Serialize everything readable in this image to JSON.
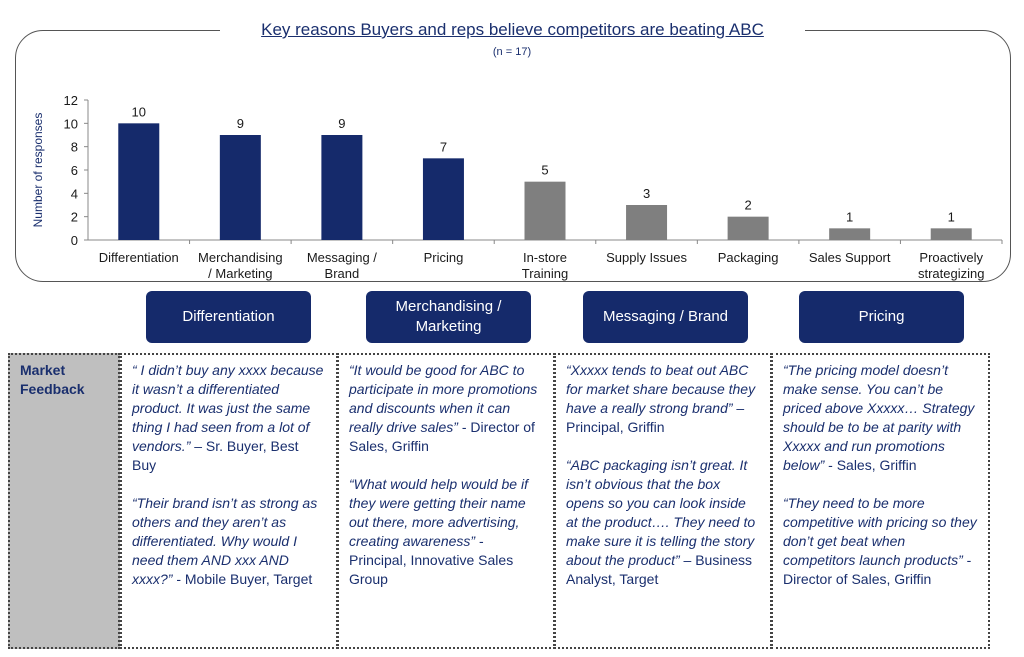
{
  "title": "Key reasons Buyers and reps believe competitors are beating ABC",
  "subtitle": "(n = 17)",
  "chart_data": {
    "type": "bar",
    "categories": [
      "Differentiation",
      "Merchandising / Marketing",
      "Messaging / Brand",
      "Pricing",
      "In-store Training",
      "Supply Issues",
      "Packaging",
      "Sales Support",
      "Proactively strategizing"
    ],
    "category_lines": [
      [
        "Differentiation"
      ],
      [
        "Merchandising",
        "/ Marketing"
      ],
      [
        "Messaging /",
        "Brand"
      ],
      [
        "Pricing"
      ],
      [
        "In-store",
        "Training"
      ],
      [
        "Supply Issues"
      ],
      [
        "Packaging"
      ],
      [
        "Sales Support"
      ],
      [
        "Proactively",
        "strategizing"
      ]
    ],
    "values": [
      10,
      9,
      9,
      7,
      5,
      3,
      2,
      1,
      1
    ],
    "bar_colors": [
      "#152a6b",
      "#152a6b",
      "#152a6b",
      "#152a6b",
      "#7f7f7f",
      "#7f7f7f",
      "#7f7f7f",
      "#7f7f7f",
      "#7f7f7f"
    ],
    "ylabel": "Number of responses",
    "ylim": [
      0,
      12
    ],
    "yticks": [
      0,
      2,
      4,
      6,
      8,
      10,
      12
    ],
    "grid": false,
    "data_labels": true
  },
  "tags": [
    "Differentiation",
    "Merchandising / Marketing",
    "Messaging / Brand",
    "Pricing"
  ],
  "feedback": {
    "label": "Market Feedback",
    "columns": [
      [
        {
          "quote": "“ I didn’t buy any xxxx because it wasn’t a differentiated product.  It was just the same thing I had seen from a lot of vendors.”",
          "source": " – Sr. Buyer, Best Buy"
        },
        {
          "quote": "“Their brand isn’t as strong as others and they aren’t as differentiated.  Why would I need them AND xxx AND xxxx?”",
          "source": "  - Mobile Buyer, Target"
        }
      ],
      [
        {
          "quote": "“It would be good for ABC to participate in more promotions and discounts when it can really drive sales”",
          "source": "  - Director of Sales, Griffin"
        },
        {
          "quote": "“What would help would be if they were getting their name out there, more advertising, creating awareness”",
          "source": " - Principal, Innovative Sales Group"
        }
      ],
      [
        {
          "quote": "“Xxxxx tends to beat out ABC for market share because they have a really strong brand”",
          "source": " – Principal, Griffin"
        },
        {
          "quote": "“ABC packaging isn’t great. It isn’t obvious that  the box opens so you can look inside at the product…. They need to make sure it is telling the story about the product”",
          "source": " – Business Analyst, Target"
        }
      ],
      [
        {
          "quote": "“The pricing model doesn’t make sense.  You can’t be priced above Xxxxx… Strategy should be to be at parity with Xxxxx and run promotions below”",
          "source": " -  Sales, Griffin"
        },
        {
          "quote": "“They need to be more competitive with pricing so they don’t get beat when competitors launch products”",
          "source": "  - Director of Sales, Griffin"
        }
      ]
    ]
  }
}
